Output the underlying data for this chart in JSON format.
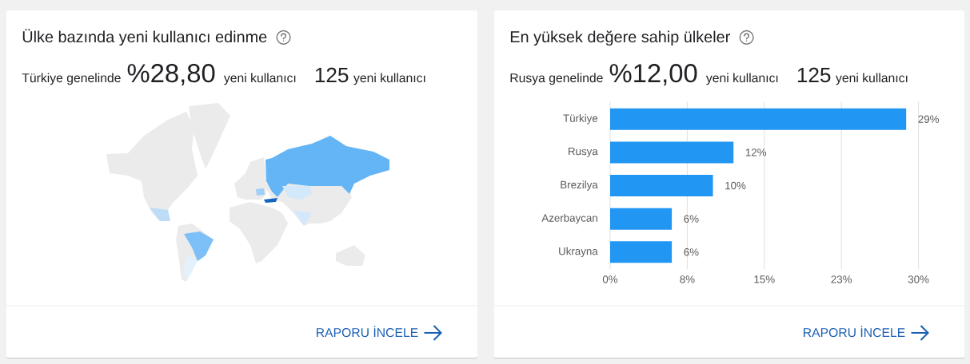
{
  "chart_data": [
    {
      "type": "other",
      "title": "Ülke bazında yeni kullanıcı edinme",
      "annotations": [
        "Türkiye genelinde",
        "%28,80",
        "yeni kullanıcı",
        "125",
        "yeni kullanıcı",
        "RAPORU İNCELE"
      ]
    },
    {
      "type": "bar",
      "orientation": "horizontal",
      "title": "En yüksek değere sahip ülkeler",
      "annotations": [
        "Rusya genelinde",
        "%12,00",
        "yeni kullanıcı",
        "125",
        "yeni kullanıcı",
        "RAPORU İNCELE"
      ],
      "categories": [
        "Türkiye",
        "Rusya",
        "Brezilya",
        "Azerbaycan",
        "Ukrayna"
      ],
      "values": [
        28.8,
        12,
        10,
        6,
        6
      ],
      "color": "#2196f3",
      "value_labels": [
        "29%",
        "12%",
        "10%",
        "6%",
        "6%"
      ],
      "xlim": [
        0,
        30
      ],
      "xticks": [
        {
          "value": 0,
          "label": "0%"
        },
        {
          "value": 7.5,
          "label": "8%"
        },
        {
          "value": 15,
          "label": "15%"
        },
        {
          "value": 22.5,
          "label": "23%"
        },
        {
          "value": 30,
          "label": "30%"
        }
      ],
      "grid": "x"
    }
  ]
}
